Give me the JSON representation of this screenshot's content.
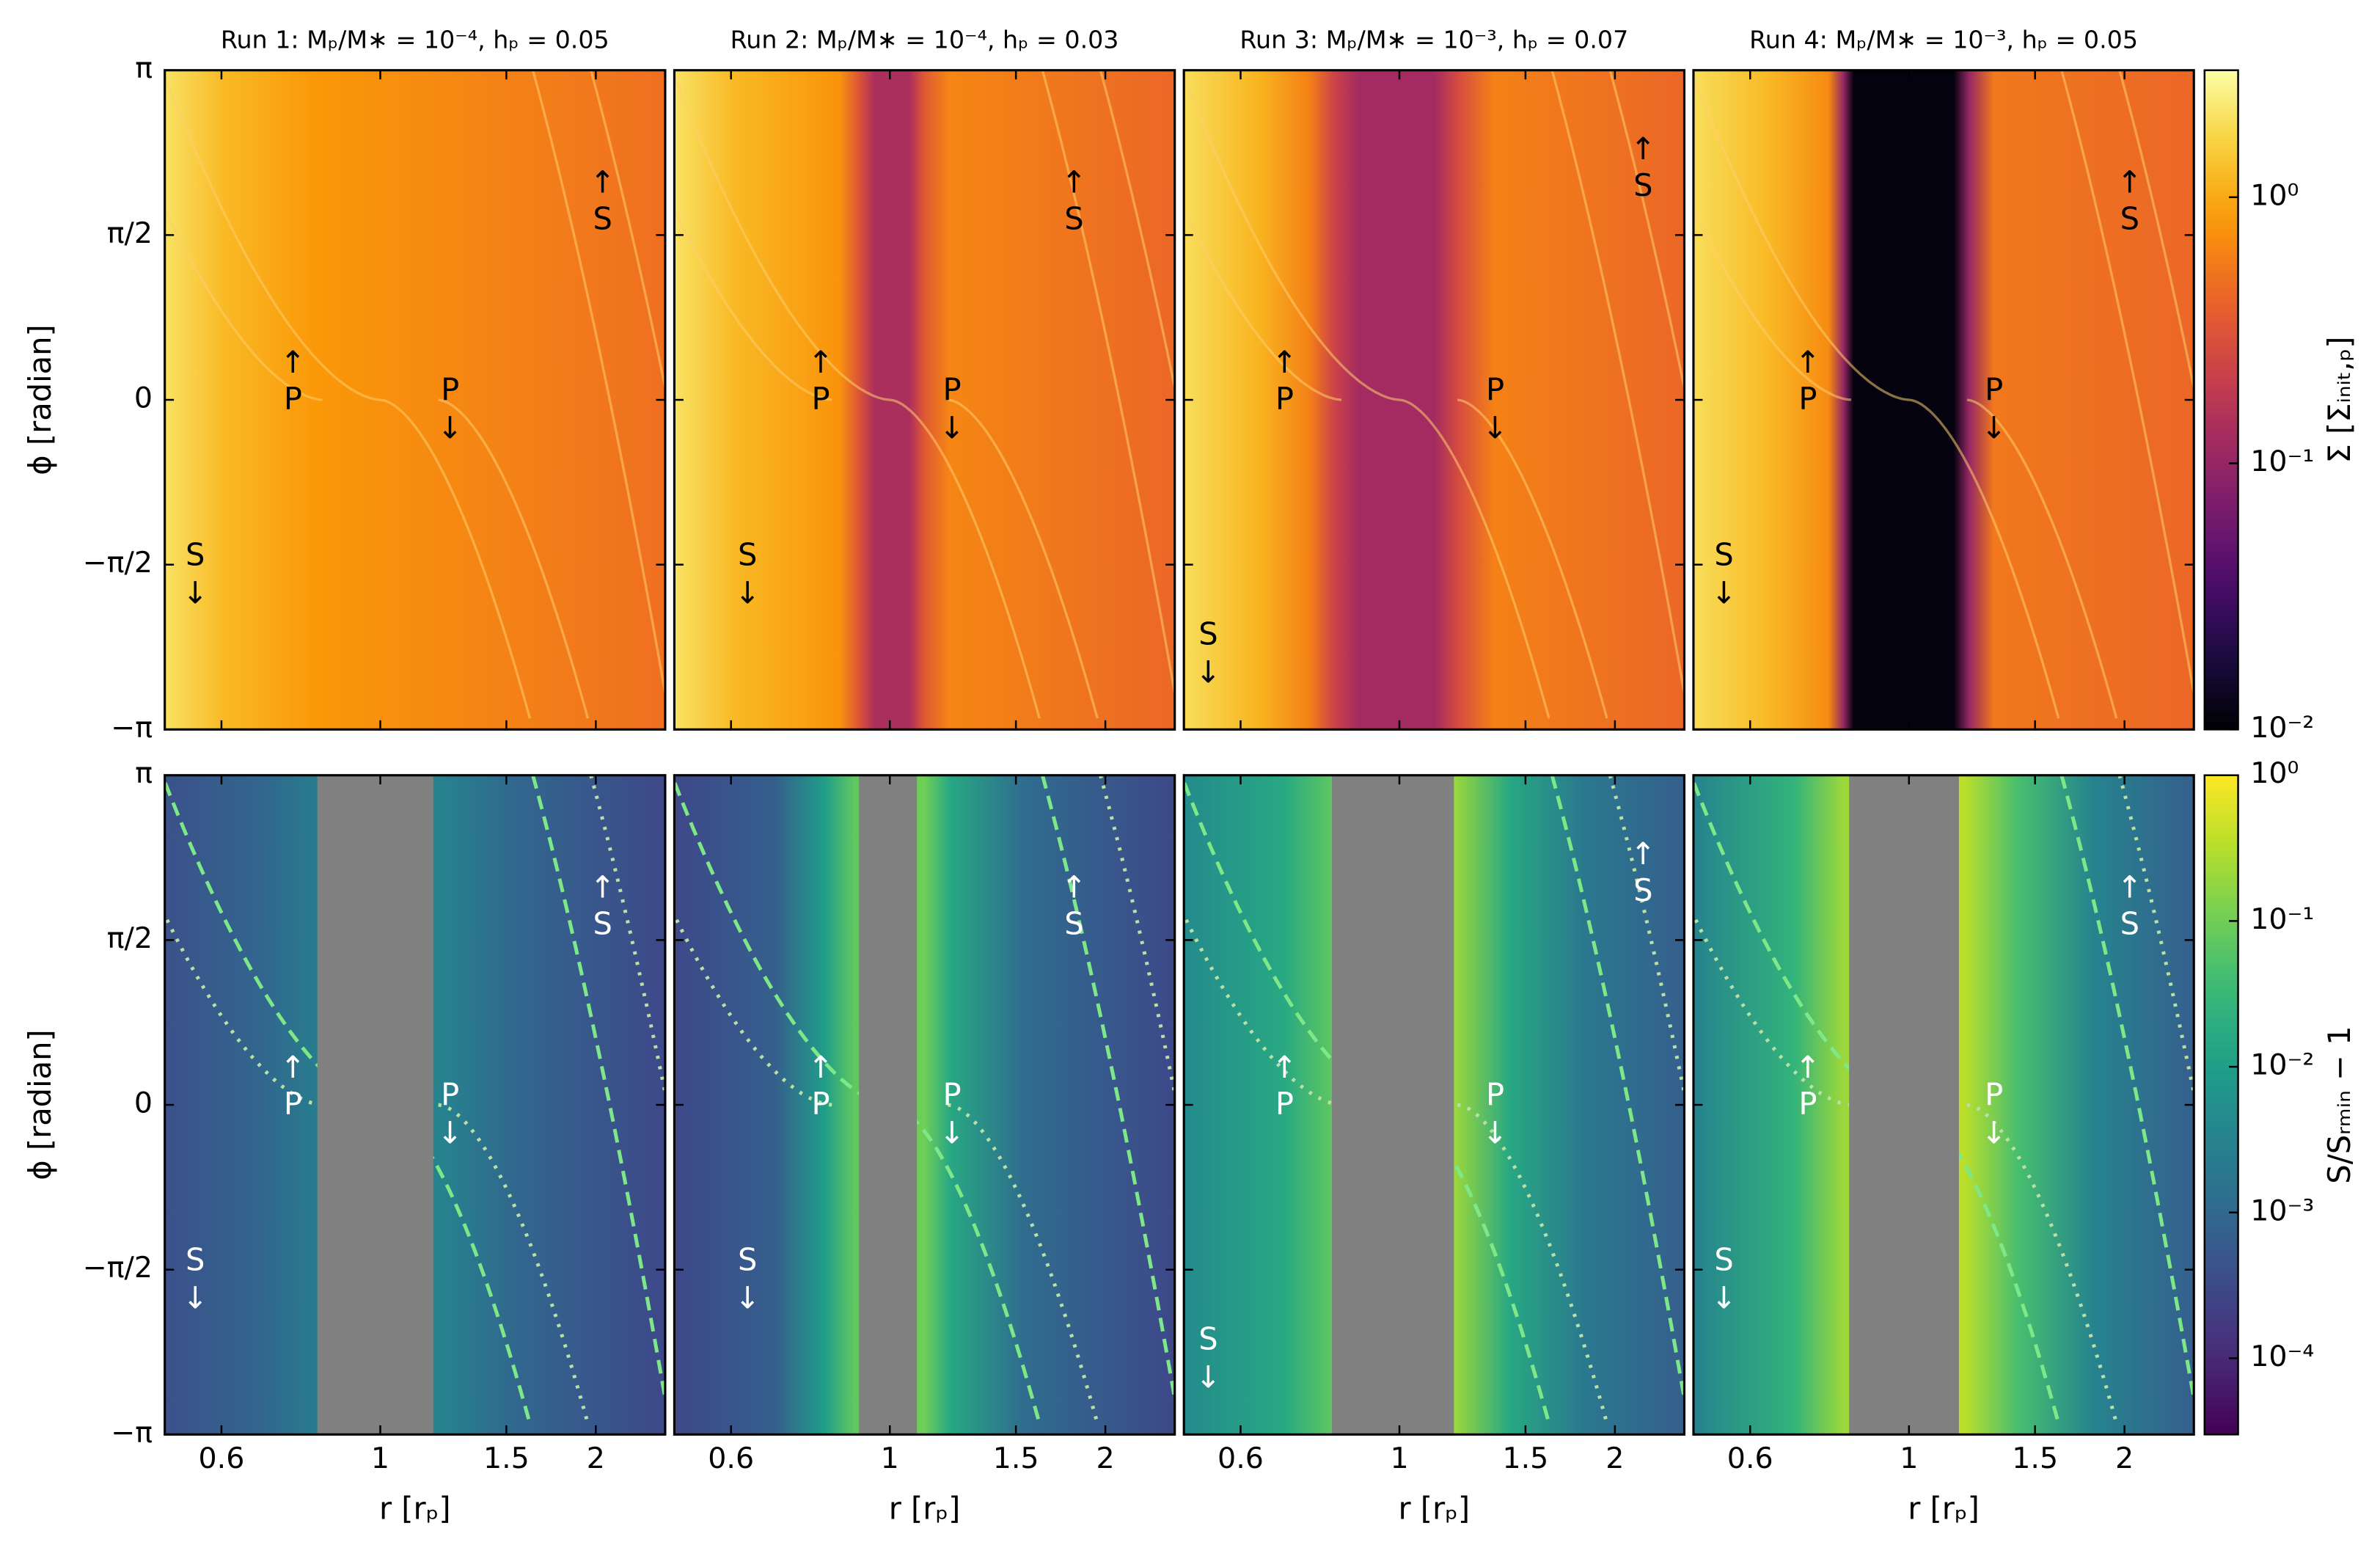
{
  "chart_data": [
    {
      "type": "heatmap",
      "title": "Run 1:  Mₚ/M∗ = 10⁻⁴,  hₚ = 0.05",
      "colormap": "inferno",
      "ylabel": "ϕ  [radian]",
      "ylim": [
        -3.14159,
        3.14159
      ],
      "yticks": [
        {
          "value": -3.14159,
          "label": "−π"
        },
        {
          "value": -1.5708,
          "label": "−π/2"
        },
        0,
        {
          "value": 1.5708,
          "label": "π/2"
        },
        {
          "value": 3.14159,
          "label": "π"
        }
      ],
      "annotations": [
        {
          "arrow": "↑",
          "label": "P"
        },
        {
          "label": "P",
          "arrow": "↓"
        },
        {
          "arrow": "↑",
          "label": "S"
        },
        {
          "label": "S",
          "arrow": "↓"
        }
      ]
    },
    {
      "type": "heatmap",
      "title": "Run 2:  Mₚ/M∗ = 10⁻⁴,  hₚ = 0.03",
      "colormap": "inferno",
      "annotations": [
        {
          "arrow": "↑",
          "label": "P"
        },
        {
          "label": "P",
          "arrow": "↓"
        },
        {
          "arrow": "↑",
          "label": "S"
        },
        {
          "label": "S",
          "arrow": "↓"
        }
      ]
    },
    {
      "type": "heatmap",
      "title": "Run 3:  Mₚ/M∗ = 10⁻³,  hₚ = 0.07",
      "colormap": "inferno",
      "annotations": [
        {
          "arrow": "↑",
          "label": "P"
        },
        {
          "label": "P",
          "arrow": "↓"
        },
        {
          "arrow": "↑",
          "label": "S"
        },
        {
          "label": "S",
          "arrow": "↓"
        }
      ]
    },
    {
      "type": "heatmap",
      "title": "Run 4:  Mₚ/M∗ = 10⁻³,  hₚ = 0.05",
      "colormap": "inferno",
      "annotations": [
        {
          "arrow": "↑",
          "label": "P"
        },
        {
          "label": "P",
          "arrow": "↓"
        },
        {
          "arrow": "↑",
          "label": "S"
        },
        {
          "label": "S",
          "arrow": "↓"
        }
      ]
    },
    {
      "type": "heatmap",
      "colormap": "viridis",
      "xlabel": "r  [rₚ]",
      "xscale": "log",
      "xlim": [
        0.5,
        2.5
      ],
      "xticks": [
        0.6,
        1,
        1.5,
        2
      ],
      "ylabel": "ϕ  [radian]",
      "ylim": [
        -3.14159,
        3.14159
      ],
      "yticks": [
        {
          "value": -3.14159,
          "label": "−π"
        },
        {
          "value": -1.5708,
          "label": "−π/2"
        },
        0,
        {
          "value": 1.5708,
          "label": "π/2"
        },
        {
          "value": 3.14159,
          "label": "π"
        }
      ],
      "annotations": [
        {
          "arrow": "↑",
          "label": "P"
        },
        {
          "label": "P",
          "arrow": "↓"
        },
        {
          "arrow": "↑",
          "label": "S"
        },
        {
          "label": "S",
          "arrow": "↓"
        }
      ]
    },
    {
      "type": "heatmap",
      "colormap": "viridis",
      "xlabel": "r  [rₚ]",
      "xscale": "log",
      "xlim": [
        0.5,
        2.5
      ],
      "xticks": [
        0.6,
        1,
        1.5,
        2
      ],
      "annotations": [
        {
          "arrow": "↑",
          "label": "P"
        },
        {
          "label": "P",
          "arrow": "↓"
        },
        {
          "arrow": "↑",
          "label": "S"
        },
        {
          "label": "S",
          "arrow": "↓"
        }
      ]
    },
    {
      "type": "heatmap",
      "colormap": "viridis",
      "xlabel": "r  [rₚ]",
      "xscale": "log",
      "xlim": [
        0.5,
        2.5
      ],
      "xticks": [
        0.6,
        1,
        1.5,
        2
      ],
      "annotations": [
        {
          "arrow": "↑",
          "label": "P"
        },
        {
          "label": "P",
          "arrow": "↓"
        },
        {
          "arrow": "↑",
          "label": "S"
        },
        {
          "label": "S",
          "arrow": "↓"
        }
      ]
    },
    {
      "type": "heatmap",
      "colormap": "viridis",
      "xlabel": "r  [rₚ]",
      "xscale": "log",
      "xlim": [
        0.5,
        2.5
      ],
      "xticks": [
        0.6,
        1,
        1.5,
        2
      ],
      "annotations": [
        {
          "arrow": "↑",
          "label": "P"
        },
        {
          "label": "P",
          "arrow": "↓"
        },
        {
          "arrow": "↑",
          "label": "S"
        },
        {
          "label": "S",
          "arrow": "↓"
        }
      ]
    },
    {
      "type": "colorbar",
      "label": "Σ  [Σᵢₙᵢₜ,ₚ]",
      "colormap": "inferno",
      "log_scale": true,
      "ylim": [
        0.01,
        3
      ],
      "yticks": [
        {
          "value": 0.01,
          "label": "10⁻²"
        },
        {
          "value": 0.1,
          "label": "10⁻¹"
        },
        {
          "value": 1,
          "label": "10⁰"
        }
      ]
    },
    {
      "type": "colorbar",
      "label": "S/Sᵣₘᵢₙ − 1",
      "colormap": "viridis",
      "log_scale": true,
      "ylim": [
        3e-05,
        1
      ],
      "yticks": [
        {
          "value": 0.0001,
          "label": "10⁻⁴"
        },
        {
          "value": 0.001,
          "label": "10⁻³"
        },
        {
          "value": 0.01,
          "label": "10⁻²"
        },
        {
          "value": 0.1,
          "label": "10⁻¹"
        },
        {
          "value": 1,
          "label": "10⁰"
        }
      ]
    }
  ]
}
